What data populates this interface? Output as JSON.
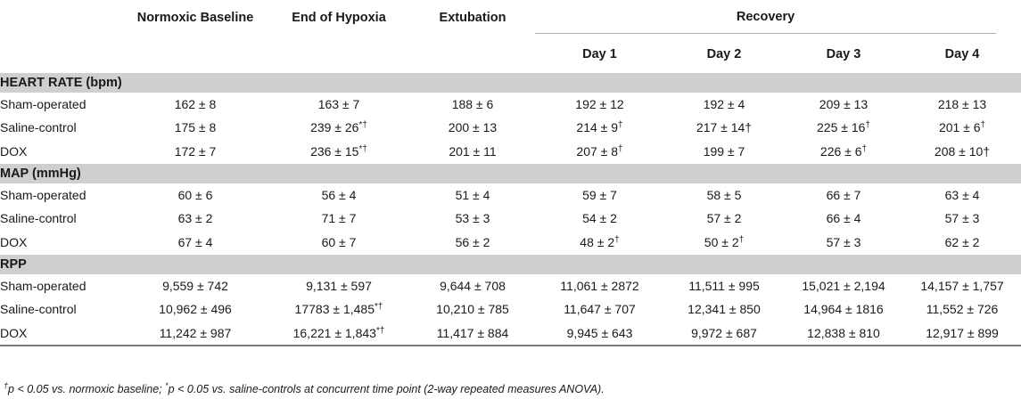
{
  "columns": {
    "baseline": "Normoxic Baseline",
    "hypoxia": "End of Hypoxia",
    "extubation": "Extubation",
    "recovery": "Recovery",
    "days": [
      "Day 1",
      "Day 2",
      "Day 3",
      "Day 4"
    ]
  },
  "groups": [
    {
      "title": "HEART RATE (bpm)",
      "rows": [
        {
          "label": "Sham-operated",
          "cells": [
            {
              "v": "162 ± 8"
            },
            {
              "v": "163 ± 7"
            },
            {
              "v": "188 ± 6"
            },
            {
              "v": "192 ± 12"
            },
            {
              "v": "192 ± 4"
            },
            {
              "v": "209 ± 13"
            },
            {
              "v": "218 ± 13"
            }
          ]
        },
        {
          "label": "Saline-control",
          "cells": [
            {
              "v": "175 ± 8"
            },
            {
              "v": "239 ± 26",
              "s": "*†"
            },
            {
              "v": "200 ± 13"
            },
            {
              "v": "214 ± 9",
              "s": "†"
            },
            {
              "v": "217 ± 14†"
            },
            {
              "v": "225 ± 16",
              "s": "†"
            },
            {
              "v": "201 ± 6",
              "s": "†"
            }
          ]
        },
        {
          "label": "DOX",
          "cells": [
            {
              "v": "172 ± 7"
            },
            {
              "v": "236 ± 15",
              "s": "*†"
            },
            {
              "v": "201 ± 11"
            },
            {
              "v": "207 ± 8",
              "s": "†"
            },
            {
              "v": "199 ± 7"
            },
            {
              "v": "226 ± 6",
              "s": "†"
            },
            {
              "v": "208 ± 10†"
            }
          ]
        }
      ]
    },
    {
      "title": "MAP (mmHg)",
      "rows": [
        {
          "label": "Sham-operated",
          "cells": [
            {
              "v": "60 ± 6"
            },
            {
              "v": "56 ± 4"
            },
            {
              "v": "51 ± 4"
            },
            {
              "v": "59 ± 7"
            },
            {
              "v": "58 ± 5"
            },
            {
              "v": "66 ± 7"
            },
            {
              "v": "63 ± 4"
            }
          ]
        },
        {
          "label": "Saline-control",
          "cells": [
            {
              "v": "63 ± 2"
            },
            {
              "v": "71 ± 7"
            },
            {
              "v": "53 ± 3"
            },
            {
              "v": "54 ± 2"
            },
            {
              "v": "57 ± 2"
            },
            {
              "v": "66 ± 4"
            },
            {
              "v": "57 ± 3"
            }
          ]
        },
        {
          "label": "DOX",
          "cells": [
            {
              "v": "67 ± 4"
            },
            {
              "v": "60 ± 7"
            },
            {
              "v": "56 ± 2"
            },
            {
              "v": "48 ± 2",
              "s": "†"
            },
            {
              "v": "50 ± 2",
              "s": "†"
            },
            {
              "v": "57 ± 3"
            },
            {
              "v": "62 ± 2"
            }
          ]
        }
      ]
    },
    {
      "title": "RPP",
      "rows": [
        {
          "label": "Sham-operated",
          "cells": [
            {
              "v": "9,559 ± 742"
            },
            {
              "v": "9,131 ± 597"
            },
            {
              "v": "9,644 ± 708"
            },
            {
              "v": "11,061 ± 2872"
            },
            {
              "v": "11,511 ± 995"
            },
            {
              "v": "15,021 ± 2,194"
            },
            {
              "v": "14,157 ± 1,757"
            }
          ]
        },
        {
          "label": "Saline-control",
          "cells": [
            {
              "v": "10,962 ± 496"
            },
            {
              "v": "17783 ± 1,485",
              "s": "*†"
            },
            {
              "v": "10,210 ± 785"
            },
            {
              "v": "11,647 ± 707"
            },
            {
              "v": "12,341 ± 850"
            },
            {
              "v": "14,964 ± 1816"
            },
            {
              "v": "11,552 ± 726"
            }
          ]
        },
        {
          "label": "DOX",
          "cells": [
            {
              "v": "11,242 ± 987"
            },
            {
              "v": "16,221 ± 1,843",
              "s": "*†"
            },
            {
              "v": "11,417 ± 884"
            },
            {
              "v": "9,945 ± 643"
            },
            {
              "v": "9,972 ± 687"
            },
            {
              "v": "12,838 ± 810"
            },
            {
              "v": "12,917 ± 899"
            }
          ]
        }
      ]
    }
  ],
  "footnote": {
    "dagger": "†",
    "text1": "p < 0.05 vs. normoxic baseline; ",
    "star": "*",
    "text2": "p < 0.05 vs. saline-controls at concurrent time point (2-way repeated measures ANOVA)."
  }
}
